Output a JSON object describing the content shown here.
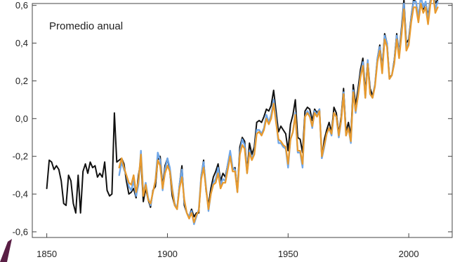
{
  "chart_data": {
    "type": "line",
    "title": "",
    "panel_label": "Promedio anual",
    "xlabel": "",
    "ylabel": "",
    "xlim": [
      1844,
      2018
    ],
    "ylim": [
      -0.63,
      0.61
    ],
    "grid": false,
    "x_ticks": [
      1850,
      1900,
      1950,
      2000
    ],
    "x_tick_labels": [
      "1850",
      "1900",
      "1950",
      "2000"
    ],
    "y_ticks": [
      0.6,
      0.4,
      0.2,
      0.0,
      -0.2,
      -0.4,
      -0.6
    ],
    "y_tick_labels": [
      "0,6",
      "0,4",
      "0,2",
      "0,0",
      "-0,2",
      "-0,4",
      "-0,6"
    ],
    "series": [
      {
        "color": "#111111",
        "x": [
          1850,
          1851,
          1852,
          1853,
          1854,
          1855,
          1856,
          1857,
          1858,
          1859,
          1860,
          1861,
          1862,
          1863,
          1864,
          1865,
          1866,
          1867,
          1868,
          1869,
          1870,
          1871,
          1872,
          1873,
          1874,
          1875,
          1876,
          1877,
          1878,
          1879,
          1880,
          1881,
          1882,
          1883,
          1884,
          1885,
          1886,
          1887,
          1888,
          1889,
          1890,
          1891,
          1892,
          1893,
          1894,
          1895,
          1896,
          1897,
          1898,
          1899,
          1900,
          1901,
          1902,
          1903,
          1904,
          1905,
          1906,
          1907,
          1908,
          1909,
          1910,
          1911,
          1912,
          1913,
          1914,
          1915,
          1916,
          1917,
          1918,
          1919,
          1920,
          1921,
          1922,
          1923,
          1924,
          1925,
          1926,
          1927,
          1928,
          1929,
          1930,
          1931,
          1932,
          1933,
          1934,
          1935,
          1936,
          1937,
          1938,
          1939,
          1940,
          1941,
          1942,
          1943,
          1944,
          1945,
          1946,
          1947,
          1948,
          1949,
          1950,
          1951,
          1952,
          1953,
          1954,
          1955,
          1956,
          1957,
          1958,
          1959,
          1960,
          1961,
          1962,
          1963,
          1964,
          1965,
          1966,
          1967,
          1968,
          1969,
          1970,
          1971,
          1972,
          1973,
          1974,
          1975,
          1976,
          1977,
          1978,
          1979,
          1980,
          1981,
          1982,
          1983,
          1984,
          1985,
          1986,
          1987,
          1988,
          1989,
          1990,
          1991,
          1992,
          1993,
          1994,
          1995,
          1996,
          1997,
          1998,
          1999,
          2000,
          2001,
          2002,
          2003,
          2004,
          2005,
          2006,
          2007,
          2008,
          2009,
          2010,
          2011,
          2012
        ],
        "values": [
          -0.37,
          -0.22,
          -0.23,
          -0.27,
          -0.25,
          -0.27,
          -0.33,
          -0.45,
          -0.46,
          -0.3,
          -0.33,
          -0.45,
          -0.5,
          -0.3,
          -0.5,
          -0.28,
          -0.24,
          -0.29,
          -0.23,
          -0.26,
          -0.25,
          -0.31,
          -0.29,
          -0.31,
          -0.23,
          -0.38,
          -0.41,
          -0.4,
          0.03,
          -0.23,
          -0.22,
          -0.21,
          -0.24,
          -0.33,
          -0.4,
          -0.39,
          -0.37,
          -0.42,
          -0.3,
          -0.22,
          -0.44,
          -0.37,
          -0.43,
          -0.47,
          -0.38,
          -0.36,
          -0.22,
          -0.2,
          -0.36,
          -0.25,
          -0.21,
          -0.28,
          -0.41,
          -0.46,
          -0.48,
          -0.35,
          -0.25,
          -0.46,
          -0.5,
          -0.52,
          -0.48,
          -0.52,
          -0.5,
          -0.5,
          -0.3,
          -0.22,
          -0.38,
          -0.46,
          -0.37,
          -0.31,
          -0.28,
          -0.24,
          -0.33,
          -0.29,
          -0.31,
          -0.24,
          -0.19,
          -0.27,
          -0.26,
          -0.38,
          -0.15,
          -0.1,
          -0.12,
          -0.28,
          -0.13,
          -0.19,
          -0.15,
          -0.02,
          -0.01,
          -0.02,
          0.01,
          0.05,
          0.04,
          0.07,
          0.15,
          0.04,
          -0.07,
          -0.04,
          -0.06,
          -0.08,
          -0.17,
          -0.03,
          0.02,
          0.1,
          -0.1,
          -0.11,
          -0.18,
          0.04,
          0.06,
          0.05,
          -0.01,
          0.05,
          0.03,
          0.05,
          -0.21,
          -0.11,
          -0.06,
          -0.02,
          -0.07,
          0.06,
          0.03,
          -0.08,
          0.01,
          0.16,
          -0.07,
          -0.02,
          -0.09,
          0.18,
          0.07,
          0.16,
          0.26,
          0.32,
          0.14,
          0.31,
          0.16,
          0.12,
          0.18,
          0.32,
          0.39,
          0.27,
          0.45,
          0.4,
          0.22,
          0.23,
          0.31,
          0.45,
          0.35,
          0.48,
          0.63,
          0.4,
          0.42,
          0.54,
          0.63,
          0.62,
          0.54,
          0.61,
          0.58,
          0.62,
          0.54,
          0.64,
          0.72,
          0.61,
          0.63
        ]
      },
      {
        "color": "#6ea6e8",
        "x": [
          1880,
          1881,
          1882,
          1883,
          1884,
          1885,
          1886,
          1887,
          1888,
          1889,
          1890,
          1891,
          1892,
          1893,
          1894,
          1895,
          1896,
          1897,
          1898,
          1899,
          1900,
          1901,
          1902,
          1903,
          1904,
          1905,
          1906,
          1907,
          1908,
          1909,
          1910,
          1911,
          1912,
          1913,
          1914,
          1915,
          1916,
          1917,
          1918,
          1919,
          1920,
          1921,
          1922,
          1923,
          1924,
          1925,
          1926,
          1927,
          1928,
          1929,
          1930,
          1931,
          1932,
          1933,
          1934,
          1935,
          1936,
          1937,
          1938,
          1939,
          1940,
          1941,
          1942,
          1943,
          1944,
          1945,
          1946,
          1947,
          1948,
          1949,
          1950,
          1951,
          1952,
          1953,
          1954,
          1955,
          1956,
          1957,
          1958,
          1959,
          1960,
          1961,
          1962,
          1963,
          1964,
          1965,
          1966,
          1967,
          1968,
          1969,
          1970,
          1971,
          1972,
          1973,
          1974,
          1975,
          1976,
          1977,
          1978,
          1979,
          1980,
          1981,
          1982,
          1983,
          1984,
          1985,
          1986,
          1987,
          1988,
          1989,
          1990,
          1991,
          1992,
          1993,
          1994,
          1995,
          1996,
          1997,
          1998,
          1999,
          2000,
          2001,
          2002,
          2003,
          2004,
          2005,
          2006,
          2007,
          2008,
          2009,
          2010,
          2011,
          2012
        ],
        "values": [
          -0.3,
          -0.23,
          -0.27,
          -0.3,
          -0.36,
          -0.38,
          -0.33,
          -0.41,
          -0.35,
          -0.17,
          -0.4,
          -0.34,
          -0.42,
          -0.46,
          -0.39,
          -0.33,
          -0.18,
          -0.22,
          -0.38,
          -0.27,
          -0.21,
          -0.26,
          -0.37,
          -0.45,
          -0.48,
          -0.35,
          -0.27,
          -0.44,
          -0.5,
          -0.52,
          -0.49,
          -0.56,
          -0.52,
          -0.48,
          -0.3,
          -0.23,
          -0.36,
          -0.49,
          -0.4,
          -0.34,
          -0.32,
          -0.26,
          -0.35,
          -0.32,
          -0.33,
          -0.24,
          -0.17,
          -0.26,
          -0.27,
          -0.39,
          -0.18,
          -0.11,
          -0.14,
          -0.29,
          -0.17,
          -0.21,
          -0.18,
          -0.06,
          -0.06,
          -0.08,
          -0.05,
          0.02,
          -0.02,
          0.02,
          0.1,
          0.0,
          -0.13,
          -0.13,
          -0.15,
          -0.16,
          -0.26,
          -0.11,
          -0.07,
          0.03,
          -0.18,
          -0.18,
          -0.26,
          0.01,
          0.04,
          0.02,
          -0.05,
          0.04,
          0.02,
          0.05,
          -0.21,
          -0.15,
          -0.08,
          -0.05,
          -0.09,
          0.03,
          0.01,
          -0.1,
          -0.01,
          0.14,
          -0.09,
          -0.05,
          -0.13,
          0.15,
          0.03,
          0.13,
          0.23,
          0.3,
          0.11,
          0.31,
          0.13,
          0.11,
          0.18,
          0.32,
          0.38,
          0.25,
          0.44,
          0.4,
          0.21,
          0.23,
          0.3,
          0.44,
          0.34,
          0.46,
          0.61,
          0.38,
          0.4,
          0.53,
          0.62,
          0.62,
          0.53,
          0.65,
          0.59,
          0.62,
          0.52,
          0.64,
          0.71,
          0.58,
          0.62
        ]
      },
      {
        "color": "#e89a2e",
        "x": [
          1880,
          1881,
          1882,
          1883,
          1884,
          1885,
          1886,
          1887,
          1888,
          1889,
          1890,
          1891,
          1892,
          1893,
          1894,
          1895,
          1896,
          1897,
          1898,
          1899,
          1900,
          1901,
          1902,
          1903,
          1904,
          1905,
          1906,
          1907,
          1908,
          1909,
          1910,
          1911,
          1912,
          1913,
          1914,
          1915,
          1916,
          1917,
          1918,
          1919,
          1920,
          1921,
          1922,
          1923,
          1924,
          1925,
          1926,
          1927,
          1928,
          1929,
          1930,
          1931,
          1932,
          1933,
          1934,
          1935,
          1936,
          1937,
          1938,
          1939,
          1940,
          1941,
          1942,
          1943,
          1944,
          1945,
          1946,
          1947,
          1948,
          1949,
          1950,
          1951,
          1952,
          1953,
          1954,
          1955,
          1956,
          1957,
          1958,
          1959,
          1960,
          1961,
          1962,
          1963,
          1964,
          1965,
          1966,
          1967,
          1968,
          1969,
          1970,
          1971,
          1972,
          1973,
          1974,
          1975,
          1976,
          1977,
          1978,
          1979,
          1980,
          1981,
          1982,
          1983,
          1984,
          1985,
          1986,
          1987,
          1988,
          1989,
          1990,
          1991,
          1992,
          1993,
          1994,
          1995,
          1996,
          1997,
          1998,
          1999,
          2000,
          2001,
          2002,
          2003,
          2004,
          2005,
          2006,
          2007,
          2008,
          2009,
          2010,
          2011,
          2012
        ],
        "values": [
          -0.26,
          -0.21,
          -0.26,
          -0.3,
          -0.34,
          -0.35,
          -0.3,
          -0.39,
          -0.33,
          -0.19,
          -0.41,
          -0.35,
          -0.43,
          -0.45,
          -0.39,
          -0.33,
          -0.22,
          -0.25,
          -0.37,
          -0.29,
          -0.25,
          -0.28,
          -0.38,
          -0.46,
          -0.48,
          -0.37,
          -0.31,
          -0.43,
          -0.5,
          -0.53,
          -0.5,
          -0.55,
          -0.51,
          -0.49,
          -0.32,
          -0.26,
          -0.37,
          -0.48,
          -0.4,
          -0.35,
          -0.34,
          -0.29,
          -0.37,
          -0.34,
          -0.34,
          -0.27,
          -0.2,
          -0.28,
          -0.28,
          -0.39,
          -0.19,
          -0.14,
          -0.16,
          -0.29,
          -0.18,
          -0.22,
          -0.19,
          -0.08,
          -0.07,
          -0.09,
          -0.06,
          0.0,
          -0.03,
          0.0,
          0.08,
          -0.02,
          -0.11,
          -0.12,
          -0.14,
          -0.15,
          -0.24,
          -0.11,
          -0.07,
          0.02,
          -0.17,
          -0.17,
          -0.24,
          0.01,
          0.03,
          0.01,
          -0.04,
          0.03,
          0.01,
          0.04,
          -0.2,
          -0.14,
          -0.08,
          -0.05,
          -0.08,
          0.03,
          0.01,
          -0.09,
          -0.01,
          0.13,
          -0.09,
          -0.05,
          -0.12,
          0.14,
          0.04,
          0.12,
          0.22,
          0.28,
          0.11,
          0.29,
          0.13,
          0.11,
          0.17,
          0.3,
          0.36,
          0.24,
          0.42,
          0.38,
          0.21,
          0.23,
          0.29,
          0.42,
          0.32,
          0.44,
          0.58,
          0.36,
          0.39,
          0.51,
          0.59,
          0.59,
          0.51,
          0.61,
          0.56,
          0.59,
          0.5,
          0.61,
          0.67,
          0.56,
          0.59
        ]
      }
    ]
  }
}
